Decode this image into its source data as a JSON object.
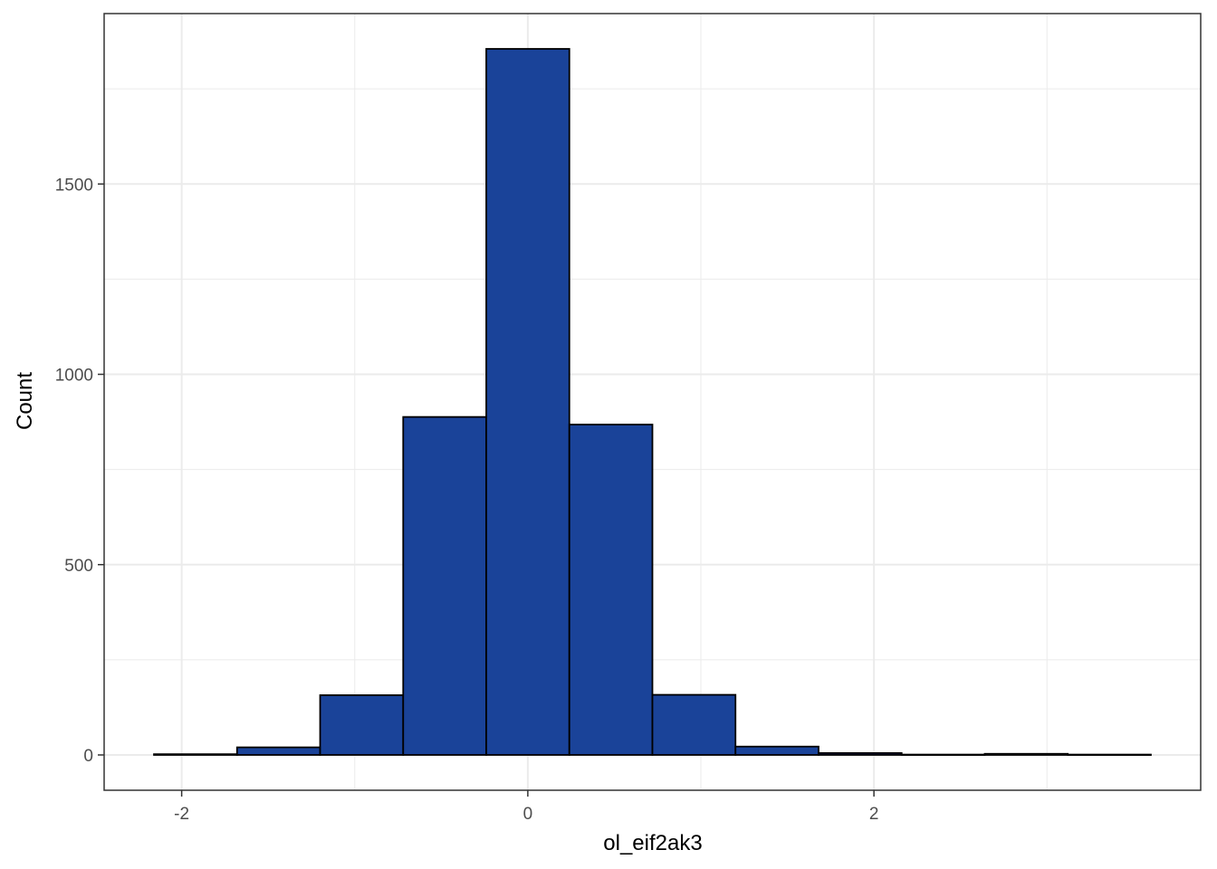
{
  "chart_data": {
    "type": "bar",
    "subtype": "histogram",
    "title": "",
    "xlabel": "ol_eif2ak3",
    "ylabel": "Count",
    "bin_width": 0.48,
    "bins": [
      {
        "x0": -2.16,
        "x1": -1.68,
        "count": 2
      },
      {
        "x0": -1.68,
        "x1": -1.2,
        "count": 20
      },
      {
        "x0": -1.2,
        "x1": -0.72,
        "count": 157
      },
      {
        "x0": -0.72,
        "x1": -0.24,
        "count": 888
      },
      {
        "x0": -0.24,
        "x1": 0.24,
        "count": 1855
      },
      {
        "x0": 0.24,
        "x1": 0.72,
        "count": 868
      },
      {
        "x0": 0.72,
        "x1": 1.2,
        "count": 158
      },
      {
        "x0": 1.2,
        "x1": 1.68,
        "count": 22
      },
      {
        "x0": 1.68,
        "x1": 2.16,
        "count": 5
      },
      {
        "x0": 2.16,
        "x1": 2.64,
        "count": 1
      },
      {
        "x0": 2.64,
        "x1": 3.12,
        "count": 3
      },
      {
        "x0": 3.12,
        "x1": 3.6,
        "count": 1
      }
    ],
    "xlim": [
      -2.448,
      3.888
    ],
    "ylim": [
      -92.75,
      1947.75
    ],
    "x_ticks": [
      -2,
      0,
      2
    ],
    "x_tick_labels": [
      "-2",
      "0",
      "2"
    ],
    "x_minor_ticks": [
      -1,
      1,
      3
    ],
    "y_ticks": [
      0,
      500,
      1000,
      1500
    ],
    "y_tick_labels": [
      "0",
      "500",
      "1000",
      "1500"
    ],
    "y_minor_ticks": [
      250,
      750,
      1250,
      1750
    ],
    "grid": true,
    "theme": "bw",
    "fill_color": "#1A4399",
    "outline_color": "#000000",
    "grid_color": "#EBEBEB",
    "panel_border_color": "#333333"
  }
}
